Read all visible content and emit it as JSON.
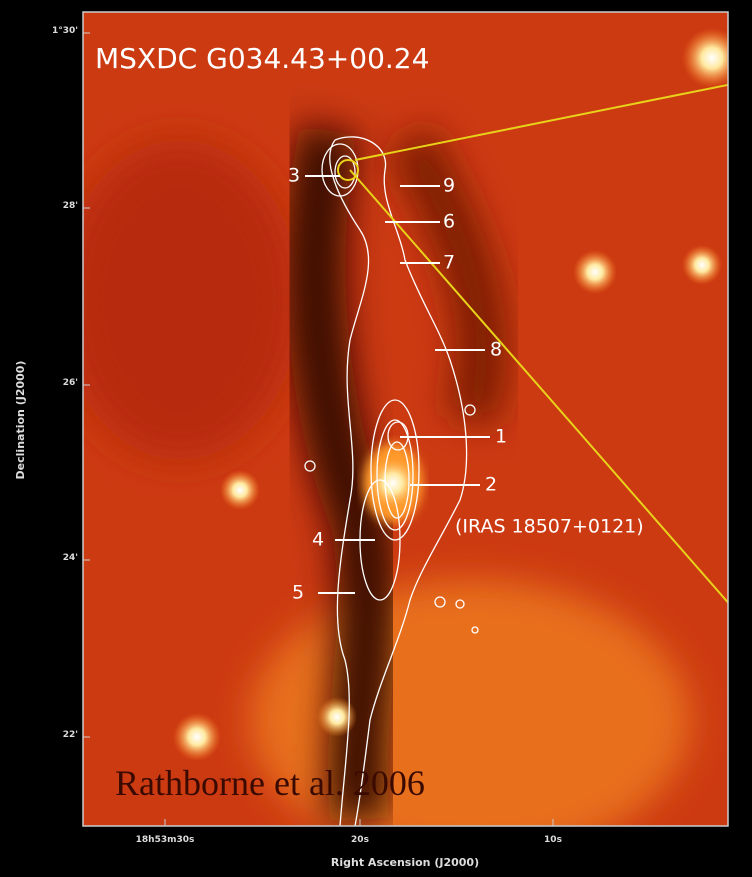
{
  "title": "MSXDC G034.43+00.24",
  "credit": "Rathborne et al. 2006",
  "annotation": "(IRAS 18507+0121)",
  "axes": {
    "y_label": "Declination (J2000)",
    "x_label": "Right Ascension (J2000)",
    "y_ticks": [
      "1°30'",
      "28'",
      "26'",
      "24'",
      "22'"
    ],
    "x_ticks": [
      "18h53m30s",
      "20s",
      "10s"
    ]
  },
  "sources": [
    {
      "label": "3"
    },
    {
      "label": "9"
    },
    {
      "label": "6"
    },
    {
      "label": "7"
    },
    {
      "label": "8"
    },
    {
      "label": "1"
    },
    {
      "label": "2"
    },
    {
      "label": "4"
    },
    {
      "label": "5"
    }
  ]
}
